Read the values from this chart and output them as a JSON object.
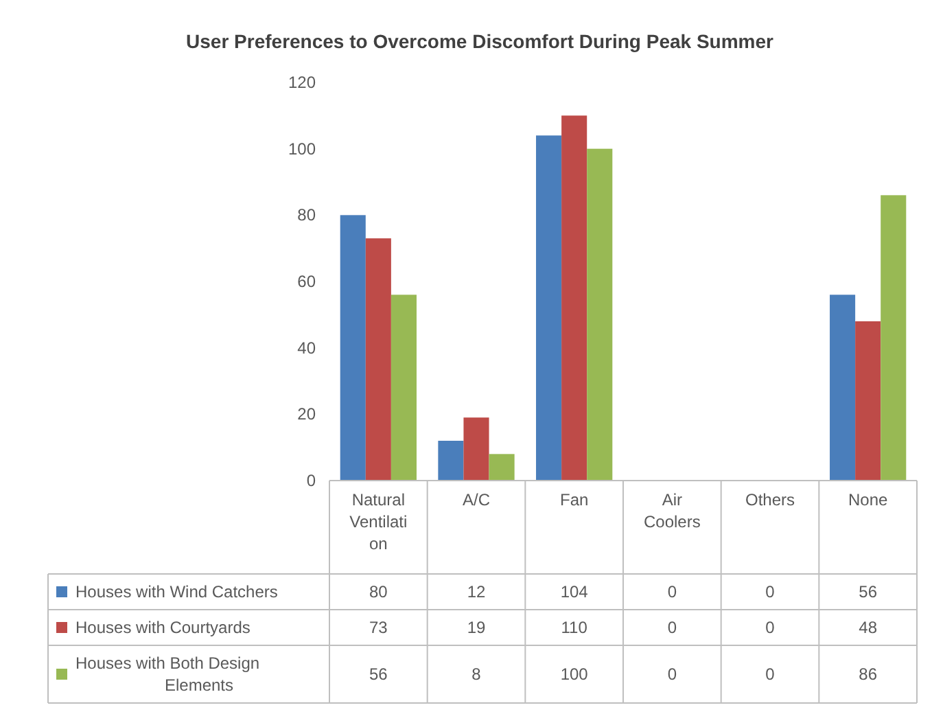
{
  "chart_data": {
    "type": "bar",
    "title": "User Preferences to Overcome Discomfort During Peak Summer",
    "categories": [
      "Natural Ventilation",
      "A/C",
      "Fan",
      "Air Coolers",
      "Others",
      "None"
    ],
    "series": [
      {
        "name": "Houses with Wind Catchers",
        "color": "#4a7ebb",
        "values": [
          80,
          12,
          104,
          0,
          0,
          56
        ]
      },
      {
        "name": "Houses with Courtyards",
        "color": "#be4b48",
        "values": [
          73,
          19,
          110,
          0,
          0,
          48
        ]
      },
      {
        "name": "Houses with Both Design Elements",
        "color": "#98b954",
        "values": [
          56,
          8,
          100,
          0,
          0,
          86
        ]
      }
    ],
    "ylim": [
      0,
      120
    ],
    "yticks": [
      0,
      20,
      40,
      60,
      80,
      100,
      120
    ],
    "data_labels": true,
    "legend": "bottom"
  }
}
